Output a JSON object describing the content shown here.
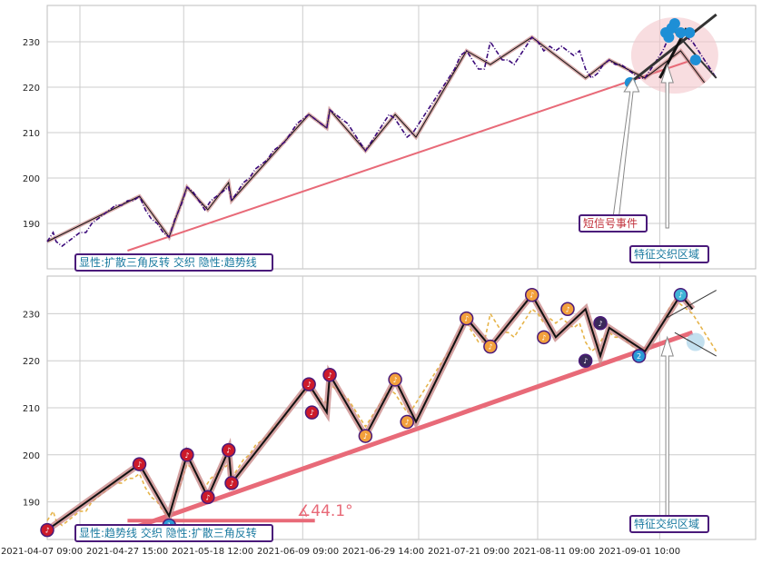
{
  "chart_data": [
    {
      "type": "line",
      "panel": "top",
      "y_ticks": [
        190,
        200,
        210,
        220,
        230
      ],
      "ylim": [
        180,
        238
      ],
      "grid": true,
      "price_series": [
        [
          0,
          186
        ],
        [
          2,
          188
        ],
        [
          3,
          186
        ],
        [
          5,
          185
        ],
        [
          7,
          186
        ],
        [
          9,
          187
        ],
        [
          11,
          188
        ],
        [
          13,
          188
        ],
        [
          15,
          190
        ],
        [
          17,
          191
        ],
        [
          19,
          192
        ],
        [
          21,
          193
        ],
        [
          23,
          194
        ],
        [
          25,
          194
        ],
        [
          27,
          195
        ],
        [
          29,
          195
        ],
        [
          31,
          196
        ],
        [
          33,
          193
        ],
        [
          35,
          191
        ],
        [
          37,
          190
        ],
        [
          39,
          188
        ],
        [
          41,
          187
        ],
        [
          43,
          191
        ],
        [
          45,
          194
        ],
        [
          47,
          198
        ],
        [
          49,
          197
        ],
        [
          51,
          195
        ],
        [
          53,
          193
        ],
        [
          55,
          195
        ],
        [
          57,
          196
        ],
        [
          59,
          197
        ],
        [
          61,
          198
        ],
        [
          62,
          195
        ],
        [
          64,
          197
        ],
        [
          66,
          199
        ],
        [
          68,
          200
        ],
        [
          70,
          202
        ],
        [
          72,
          203
        ],
        [
          74,
          204
        ],
        [
          76,
          206
        ],
        [
          78,
          207
        ],
        [
          80,
          208
        ],
        [
          82,
          210
        ],
        [
          84,
          212
        ],
        [
          86,
          213
        ],
        [
          88,
          214
        ],
        [
          90,
          213
        ],
        [
          92,
          212
        ],
        [
          94,
          211
        ],
        [
          95,
          215
        ],
        [
          97,
          214
        ],
        [
          99,
          213
        ],
        [
          101,
          212
        ],
        [
          103,
          210
        ],
        [
          105,
          208
        ],
        [
          107,
          206
        ],
        [
          109,
          208
        ],
        [
          111,
          210
        ],
        [
          113,
          212
        ],
        [
          115,
          214
        ],
        [
          117,
          213
        ],
        [
          119,
          211
        ],
        [
          121,
          209
        ],
        [
          123,
          210
        ],
        [
          125,
          212
        ],
        [
          127,
          214
        ],
        [
          129,
          216
        ],
        [
          131,
          218
        ],
        [
          133,
          220
        ],
        [
          135,
          222
        ],
        [
          137,
          224
        ],
        [
          139,
          227
        ],
        [
          141,
          228
        ],
        [
          143,
          226
        ],
        [
          145,
          224
        ],
        [
          147,
          224
        ],
        [
          149,
          230
        ],
        [
          151,
          228
        ],
        [
          153,
          226
        ],
        [
          155,
          226
        ],
        [
          157,
          225
        ],
        [
          159,
          227
        ],
        [
          161,
          229
        ],
        [
          163,
          231
        ],
        [
          165,
          230
        ],
        [
          167,
          228
        ],
        [
          169,
          229
        ],
        [
          171,
          228
        ],
        [
          173,
          229
        ],
        [
          175,
          228
        ],
        [
          177,
          227
        ],
        [
          179,
          228
        ],
        [
          181,
          224
        ],
        [
          183,
          222
        ],
        [
          185,
          223
        ],
        [
          187,
          225
        ],
        [
          189,
          226
        ],
        [
          191,
          225
        ],
        [
          193,
          225
        ],
        [
          195,
          224
        ],
        [
          197,
          223
        ],
        [
          199,
          222
        ],
        [
          201,
          222
        ],
        [
          203,
          224
        ],
        [
          205,
          226
        ],
        [
          207,
          228
        ],
        [
          209,
          231
        ],
        [
          211,
          233
        ],
        [
          213,
          232
        ],
        [
          215,
          231
        ],
        [
          217,
          230
        ],
        [
          219,
          228
        ],
        [
          221,
          226
        ],
        [
          223,
          224
        ],
        [
          225,
          222
        ]
      ],
      "pattern_line": [
        [
          0,
          186
        ],
        [
          31,
          196
        ],
        [
          41,
          187
        ],
        [
          47,
          198
        ],
        [
          54,
          193
        ],
        [
          61,
          199
        ],
        [
          62,
          195
        ],
        [
          88,
          214
        ],
        [
          94,
          211
        ],
        [
          95,
          215
        ],
        [
          107,
          206
        ],
        [
          117,
          214
        ],
        [
          124,
          209
        ],
        [
          141,
          228
        ],
        [
          149,
          225
        ],
        [
          163,
          231
        ],
        [
          171,
          227
        ],
        [
          181,
          222
        ],
        [
          189,
          226
        ],
        [
          201,
          222
        ],
        [
          213,
          228
        ],
        [
          221,
          221
        ]
      ],
      "trend_line": [
        [
          27,
          184
        ],
        [
          217,
          226
        ]
      ],
      "signal_points": [
        [
          196,
          221
        ],
        [
          208,
          232
        ],
        [
          211,
          234
        ],
        [
          209,
          231
        ],
        [
          210,
          233
        ],
        [
          213,
          232
        ],
        [
          216,
          232
        ],
        [
          218,
          226
        ]
      ],
      "labels": {
        "pattern_box": "显性:扩散三角反转 交织 隐性:趋势线",
        "event_box": "短信号事件",
        "zone_box": "特征交织区域"
      }
    },
    {
      "type": "line",
      "panel": "bottom",
      "y_ticks": [
        190,
        200,
        210,
        220,
        230
      ],
      "ylim": [
        182,
        238
      ],
      "grid": true,
      "x_tick_labels": [
        "2021-04-07 09:00",
        "2021-04-27 15:00",
        "2021-05-18 12:00",
        "2021-06-09 09:00",
        "2021-06-29 14:00",
        "2021-07-21 09:00",
        "2021-08-11 09:00",
        "2021-09-01 10:00"
      ],
      "pivot_line": [
        [
          0,
          184
        ],
        [
          31,
          198
        ],
        [
          41,
          187
        ],
        [
          47,
          200
        ],
        [
          54,
          191
        ],
        [
          61,
          201
        ],
        [
          62,
          194
        ],
        [
          88,
          215
        ],
        [
          94,
          209
        ],
        [
          95,
          217
        ],
        [
          107,
          204
        ],
        [
          117,
          216
        ],
        [
          124,
          207
        ],
        [
          141,
          229
        ],
        [
          149,
          223
        ],
        [
          163,
          234
        ],
        [
          171,
          225
        ],
        [
          181,
          231
        ],
        [
          186,
          221
        ],
        [
          189,
          227
        ],
        [
          201,
          222
        ],
        [
          213,
          234
        ],
        [
          217,
          231
        ]
      ],
      "trend_line": [
        [
          27,
          184
        ],
        [
          217,
          226
        ]
      ],
      "angle_label": "∡44.1°",
      "marker_icon": "music-note-icon",
      "marker_numbers": [
        "1",
        "2"
      ],
      "labels": {
        "pattern_box": "显性:趋势线 交织 隐性:扩散三角反转",
        "zone_box": "特征交织区域"
      }
    }
  ],
  "colors": {
    "price": "#3b0a7a",
    "pattern_halo": "#c98a8a",
    "trend": "#e86a78",
    "signal": "#1e8fd6",
    "label_border": "#4a1a7a",
    "label_text_teal": "#1a7aa0",
    "label_text_red": "#c0303a",
    "zone_fill": "#f4c6cc",
    "grid": "#cccccc",
    "marker_red": "#cc1a2a",
    "marker_orange": "#f2a03c",
    "marker_dark": "#3a2a5a",
    "dashed_gold": "#e6b44a"
  }
}
